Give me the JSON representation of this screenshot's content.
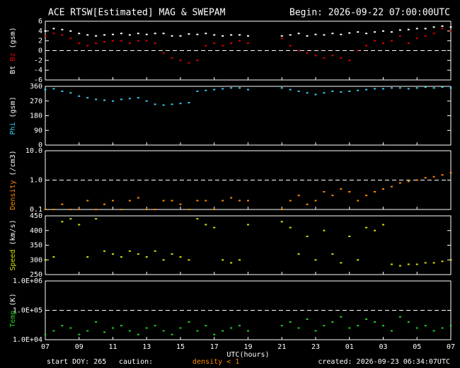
{
  "page": {
    "title": "ACE RTSW[Estimated] MAG & SWEPAM",
    "begin": "Begin: 2026-09-22 07:00:00UTC",
    "start_doy": "start DOY: 265",
    "caution": "caution:",
    "density_note": "density < 1",
    "created": "created: 2026-09-23 06:34:07UTC"
  },
  "chart_data": [
    {
      "type": "scatter",
      "y_label": "(gsm)",
      "xlim": [
        0,
        24
      ],
      "ylim": [
        -6,
        6
      ],
      "yticks": [
        -6,
        -4,
        -2,
        0,
        2,
        4,
        6
      ],
      "reference_line": 0,
      "x": [
        0,
        0.5,
        1,
        1.5,
        2,
        2.5,
        3,
        3.5,
        4,
        4.5,
        5,
        5.5,
        6,
        6.5,
        7,
        7.5,
        8,
        8.5,
        9,
        9.5,
        10,
        10.5,
        11,
        11.5,
        12,
        12.5,
        13,
        13.5,
        14,
        14.5,
        15,
        15.5,
        16,
        16.5,
        17,
        17.5,
        18,
        18.5,
        19,
        19.5,
        20,
        20.5,
        21,
        21.5,
        22,
        22.5,
        23,
        23.5,
        24
      ],
      "series": [
        {
          "name": "Bt",
          "color": "#ffffff",
          "values": [
            4,
            4.5,
            4.3,
            4,
            3.5,
            3.2,
            3,
            3.2,
            3.3,
            3.5,
            3.2,
            3.5,
            3.3,
            3.5,
            3.5,
            3,
            3,
            3.4,
            3.3,
            3.5,
            3.2,
            3,
            3.2,
            3.2,
            3,
            null,
            null,
            null,
            3,
            3.2,
            3.5,
            3,
            3.3,
            3.2,
            3.5,
            3.3,
            3.6,
            3.8,
            3.5,
            3.8,
            4,
            3.8,
            4.2,
            4.3,
            4.5,
            4.5,
            4.8,
            5,
            4.8
          ]
        },
        {
          "name": "Bz",
          "color": "#e00000",
          "values": [
            3,
            3.5,
            3.2,
            2.5,
            1.5,
            1,
            1.5,
            1.8,
            2,
            2,
            1.5,
            2,
            2,
            1.5,
            -0.5,
            -1.5,
            -2,
            -2.5,
            -2,
            1,
            1.5,
            1,
            1.5,
            2,
            1.5,
            null,
            null,
            null,
            2.5,
            1,
            0,
            -0.5,
            -1,
            -1.5,
            -1,
            -1.5,
            -2,
            0,
            1,
            2,
            1.5,
            2,
            3,
            1.5,
            2.5,
            3,
            3.5,
            4.5,
            4
          ]
        }
      ]
    },
    {
      "type": "scatter",
      "y_label": "(gsm)",
      "xlim": [
        0,
        24
      ],
      "ylim": [
        0,
        360
      ],
      "yticks": [
        0,
        90,
        180,
        270,
        360
      ],
      "x": [
        0,
        0.5,
        1,
        1.5,
        2,
        2.5,
        3,
        3.5,
        4,
        4.5,
        5,
        5.5,
        6,
        6.5,
        7,
        7.5,
        8,
        8.5,
        9,
        9.5,
        10,
        10.5,
        11,
        11.5,
        12,
        12.5,
        13,
        13.5,
        14,
        14.5,
        15,
        15.5,
        16,
        16.5,
        17,
        17.5,
        18,
        18.5,
        19,
        19.5,
        20,
        20.5,
        21,
        21.5,
        22,
        22.5,
        23,
        23.5,
        24
      ],
      "series": [
        {
          "name": "Phi",
          "color": "#33ccee",
          "values": [
            340,
            345,
            330,
            320,
            300,
            290,
            280,
            275,
            270,
            280,
            285,
            290,
            270,
            250,
            245,
            250,
            255,
            260,
            330,
            335,
            340,
            345,
            350,
            350,
            340,
            null,
            null,
            null,
            350,
            340,
            330,
            320,
            310,
            320,
            330,
            325,
            330,
            335,
            340,
            345,
            345,
            350,
            350,
            345,
            350,
            355,
            350,
            355,
            350
          ]
        }
      ]
    },
    {
      "type": "scatter",
      "y_label": "(/cm3)",
      "log": true,
      "xlim": [
        0,
        24
      ],
      "ylim": [
        0.1,
        10
      ],
      "yticks": [
        0.1,
        {
          "value": 1,
          "label": "1.0"
        },
        {
          "value": 10,
          "label": "10.0"
        }
      ],
      "reference_line": 1,
      "x": [
        0,
        0.5,
        1,
        1.5,
        2,
        2.5,
        3,
        3.5,
        4,
        4.5,
        5,
        5.5,
        6,
        6.5,
        7,
        7.5,
        8,
        8.5,
        9,
        9.5,
        10,
        10.5,
        11,
        11.5,
        12,
        12.5,
        13,
        13.5,
        14,
        14.5,
        15,
        15.5,
        16,
        16.5,
        17,
        17.5,
        18,
        18.5,
        19,
        19.5,
        20,
        20.5,
        21,
        21.5,
        22,
        22.5,
        23,
        23.5,
        24
      ],
      "series": [
        {
          "name": "Density",
          "color": "#ff8800",
          "values": [
            0.1,
            0.1,
            0.15,
            0.1,
            0.1,
            0.2,
            0.1,
            0.15,
            0.2,
            0.1,
            0.2,
            0.25,
            0.1,
            0.1,
            0.2,
            0.2,
            0.15,
            0.1,
            0.2,
            0.2,
            0.1,
            0.2,
            0.25,
            0.2,
            0.2,
            null,
            null,
            null,
            0.1,
            0.2,
            0.3,
            0.15,
            0.2,
            0.4,
            0.3,
            0.5,
            0.4,
            0.2,
            0.3,
            0.4,
            0.5,
            0.6,
            0.8,
            0.9,
            1.0,
            1.2,
            1.3,
            1.5,
            1.8
          ]
        }
      ]
    },
    {
      "type": "scatter",
      "y_label": "(km/s)",
      "xlim": [
        0,
        24
      ],
      "ylim": [
        250,
        450
      ],
      "yticks": [
        250,
        300,
        350,
        400,
        450
      ],
      "x": [
        0,
        0.5,
        1,
        1.5,
        2,
        2.5,
        3,
        3.5,
        4,
        4.5,
        5,
        5.5,
        6,
        6.5,
        7,
        7.5,
        8,
        8.5,
        9,
        9.5,
        10,
        10.5,
        11,
        11.5,
        12,
        12.5,
        13,
        13.5,
        14,
        14.5,
        15,
        15.5,
        16,
        16.5,
        17,
        17.5,
        18,
        18.5,
        19,
        19.5,
        20,
        20.5,
        21,
        21.5,
        22,
        22.5,
        23,
        23.5,
        24
      ],
      "series": [
        {
          "name": "Speed",
          "color": "#dddd00",
          "values": [
            300,
            310,
            430,
            440,
            420,
            310,
            440,
            330,
            320,
            310,
            330,
            320,
            310,
            330,
            300,
            320,
            310,
            300,
            440,
            420,
            410,
            300,
            290,
            300,
            420,
            null,
            null,
            null,
            430,
            410,
            320,
            380,
            300,
            400,
            320,
            290,
            380,
            300,
            410,
            400,
            420,
            285,
            280,
            285,
            285,
            290,
            290,
            295,
            300
          ]
        }
      ]
    },
    {
      "type": "scatter",
      "y_label": "(K)",
      "log": true,
      "xlim": [
        0,
        24
      ],
      "ylim": [
        10000,
        1000000
      ],
      "yticks": [
        {
          "value": 10000,
          "label": "1.0E+04"
        },
        {
          "value": 100000,
          "label": "1.0E+05"
        },
        {
          "value": 1000000,
          "label": "1.0E+06"
        }
      ],
      "reference_line": 100000,
      "x_label": "UTC(hours)",
      "xticks": [
        {
          "value": 0,
          "label": "07"
        },
        {
          "value": 2,
          "label": "09"
        },
        {
          "value": 4,
          "label": "11"
        },
        {
          "value": 6,
          "label": "13"
        },
        {
          "value": 8,
          "label": "15"
        },
        {
          "value": 10,
          "label": "17"
        },
        {
          "value": 12,
          "label": "19"
        },
        {
          "value": 14,
          "label": "21"
        },
        {
          "value": 16,
          "label": "23"
        },
        {
          "value": 18,
          "label": "01"
        },
        {
          "value": 20,
          "label": "03"
        },
        {
          "value": 22,
          "label": "05"
        },
        {
          "value": 24,
          "label": "07"
        }
      ],
      "x": [
        0,
        0.5,
        1,
        1.5,
        2,
        2.5,
        3,
        3.5,
        4,
        4.5,
        5,
        5.5,
        6,
        6.5,
        7,
        7.5,
        8,
        8.5,
        9,
        9.5,
        10,
        10.5,
        11,
        11.5,
        12,
        12.5,
        13,
        13.5,
        14,
        14.5,
        15,
        15.5,
        16,
        16.5,
        17,
        17.5,
        18,
        18.5,
        19,
        19.5,
        20,
        20.5,
        21,
        21.5,
        22,
        22.5,
        23,
        23.5,
        24
      ],
      "series": [
        {
          "name": "Temp",
          "color": "#22cc22",
          "values": [
            15000,
            20000,
            30000,
            25000,
            15000,
            20000,
            40000,
            18000,
            25000,
            30000,
            20000,
            15000,
            25000,
            30000,
            20000,
            15000,
            25000,
            40000,
            20000,
            30000,
            15000,
            20000,
            25000,
            30000,
            20000,
            null,
            null,
            null,
            30000,
            40000,
            25000,
            50000,
            20000,
            30000,
            40000,
            60000,
            25000,
            30000,
            50000,
            40000,
            30000,
            20000,
            60000,
            40000,
            25000,
            30000,
            20000,
            25000,
            30000
          ]
        }
      ]
    }
  ]
}
